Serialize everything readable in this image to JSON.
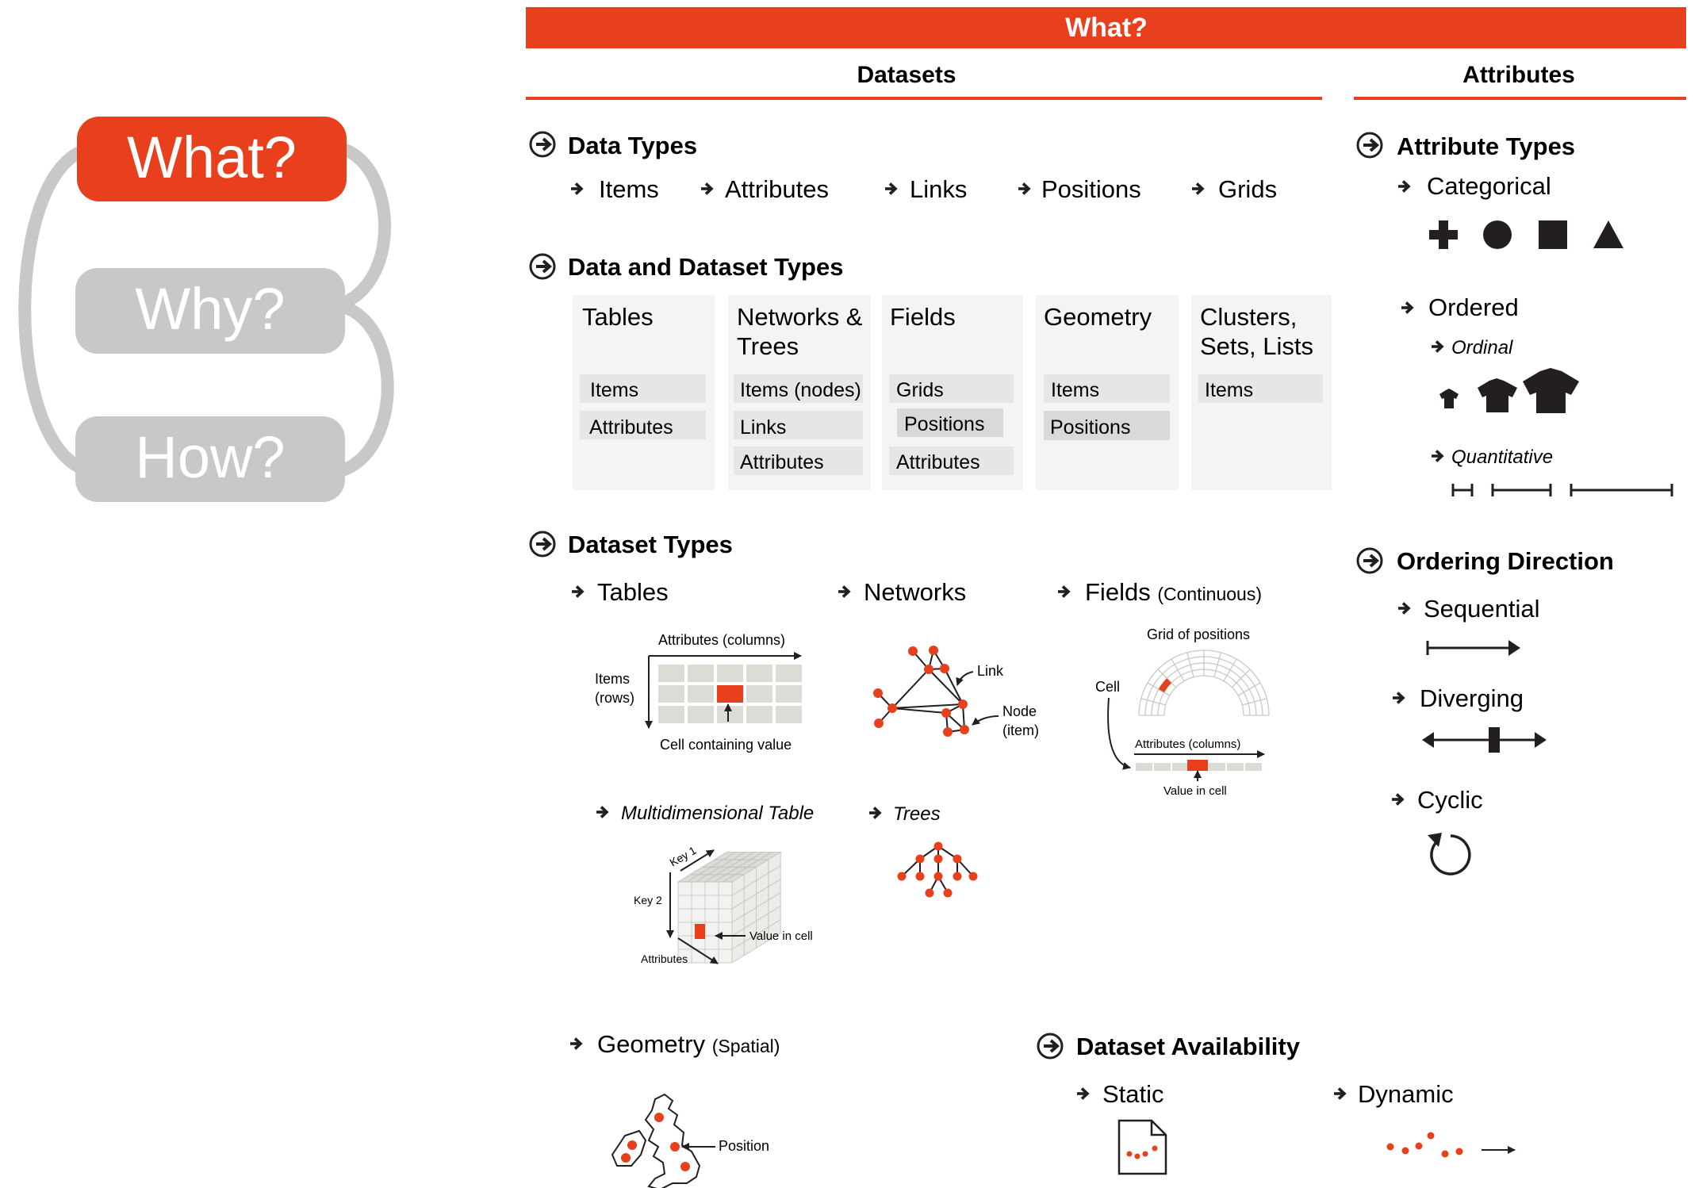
{
  "colors": {
    "accent": "#e8401c",
    "pill_gray": "#c8c9c7",
    "ink": "#231f20",
    "cell_gray": "#dcdbd6",
    "panel_bg": "#f4f4f2",
    "item_bg": "#e6e6e4"
  },
  "nav": {
    "what": "What?",
    "why": "Why?",
    "how": "How?"
  },
  "header": {
    "title": "What?",
    "datasets": "Datasets",
    "attributes": "Attributes"
  },
  "data_types": {
    "title": "Data Types",
    "items": [
      "Items",
      "Attributes",
      "Links",
      "Positions",
      "Grids"
    ]
  },
  "data_and_dataset_types": {
    "title": "Data and Dataset Types",
    "columns": [
      {
        "title": [
          "Tables"
        ],
        "items": [
          "Items",
          "Attributes"
        ]
      },
      {
        "title": [
          "Networks &",
          "Trees"
        ],
        "items": [
          "Items (nodes)",
          "Links",
          "Attributes"
        ]
      },
      {
        "title": [
          "Fields"
        ],
        "items": [
          "Grids",
          "Positions",
          "Attributes"
        ]
      },
      {
        "title": [
          "Geometry"
        ],
        "items": [
          "Items",
          "Positions"
        ]
      },
      {
        "title": [
          "Clusters,",
          "Sets, Lists"
        ],
        "items": [
          "Items"
        ]
      }
    ]
  },
  "dataset_types": {
    "title": "Dataset Types",
    "tables": "Tables",
    "networks": "Networks",
    "fields": "Fields",
    "fields_qualifier": "(Continuous)",
    "table_labels": {
      "columns": "Attributes (columns)",
      "rows_1": "Items",
      "rows_2": "(rows)",
      "cell": "Cell containing value"
    },
    "network_labels": {
      "link": "Link",
      "node_1": "Node",
      "node_2": "(item)"
    },
    "field_labels": {
      "grid": "Grid of positions",
      "cell": "Cell",
      "columns": "Attributes (columns)",
      "value": "Value in cell"
    },
    "multidim": "Multidimensional Table",
    "multidim_labels": {
      "key1": "Key 1",
      "key2": "Key 2",
      "attributes": "Attributes",
      "value": "Value in cell"
    },
    "trees": "Trees",
    "geometry": "Geometry",
    "geometry_qualifier": "(Spatial)",
    "geometry_label": "Position"
  },
  "availability": {
    "title": "Dataset Availability",
    "static": "Static",
    "dynamic": "Dynamic"
  },
  "attribute_types": {
    "title": "Attribute Types",
    "categorical": "Categorical",
    "ordered": "Ordered",
    "ordinal": "Ordinal",
    "quantitative": "Quantitative"
  },
  "ordering": {
    "title": "Ordering Direction",
    "sequential": "Sequential",
    "diverging": "Diverging",
    "cyclic": "Cyclic"
  }
}
